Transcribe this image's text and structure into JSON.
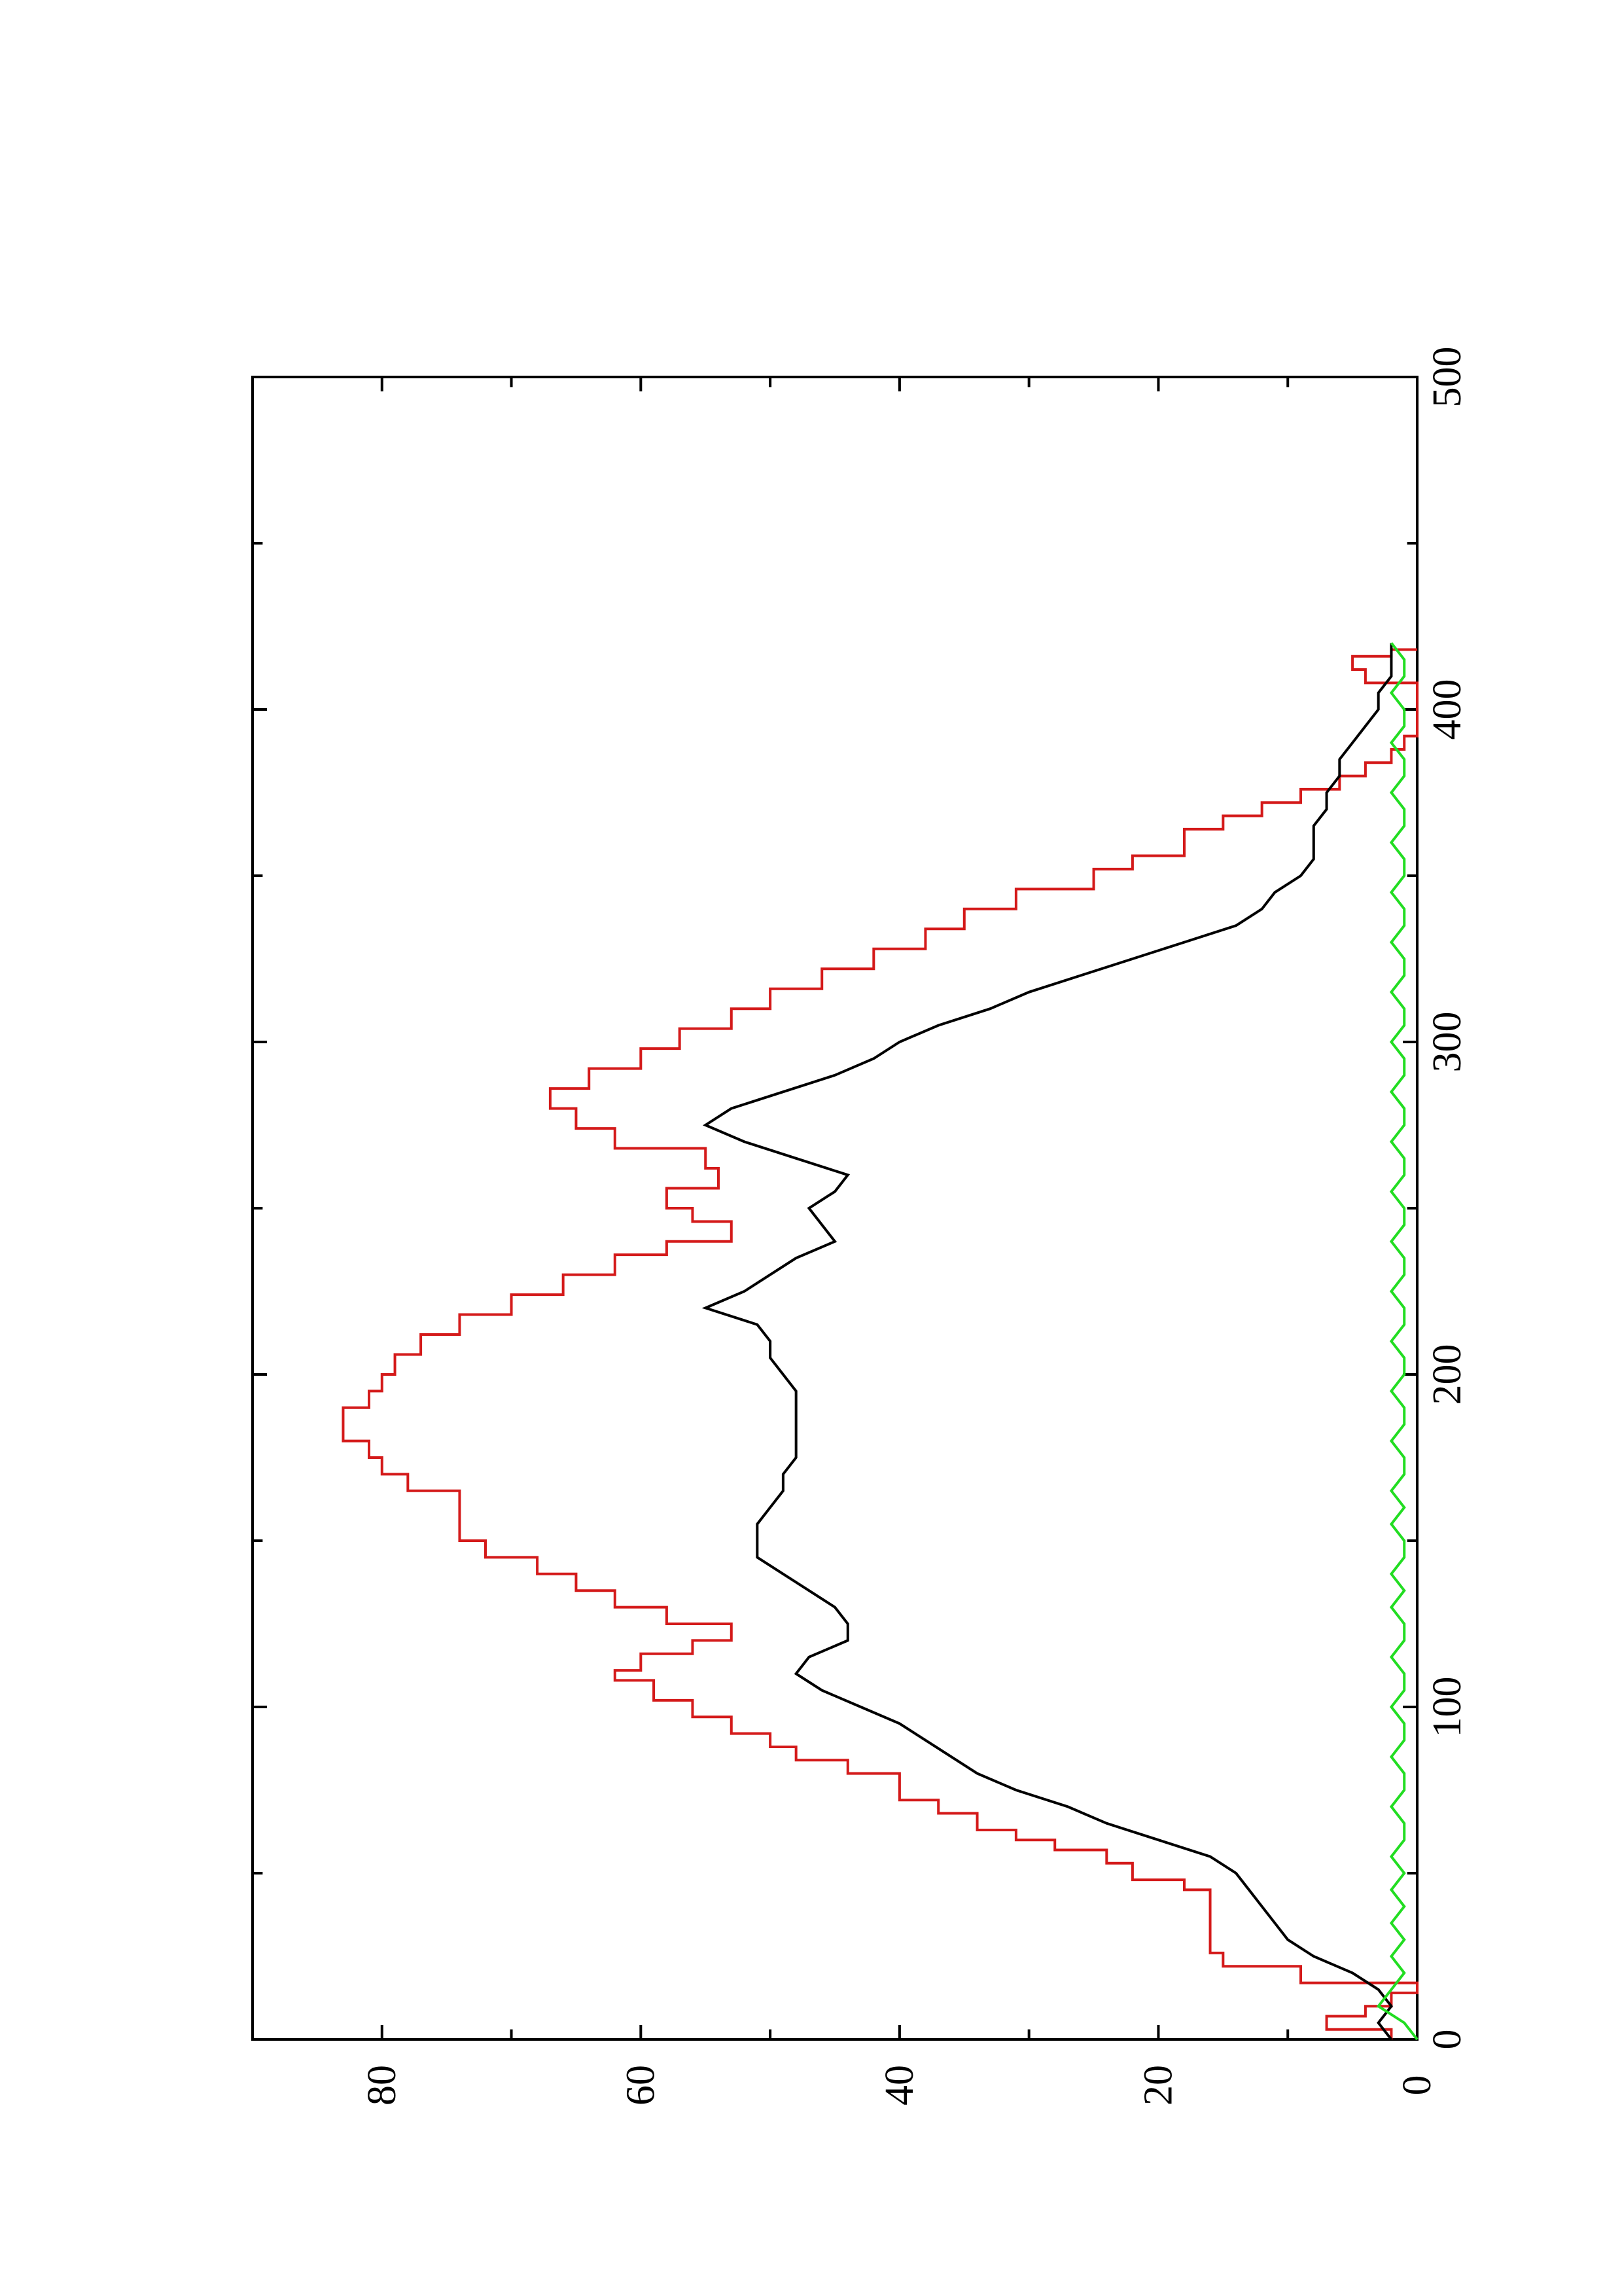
{
  "chart_data": {
    "type": "line",
    "orientation": "rotated-90-ccw",
    "title": "",
    "xlabel": "",
    "ylabel": "",
    "xlim": [
      0,
      500
    ],
    "ylim": [
      0,
      90
    ],
    "x_ticks": [
      0,
      100,
      200,
      300,
      400,
      500
    ],
    "x_tick_labels": [
      "0",
      "100",
      "200",
      "300",
      "400",
      "500"
    ],
    "y_ticks": [
      0,
      20,
      40,
      60,
      80
    ],
    "y_tick_labels": [
      "0",
      "20",
      "40",
      "60",
      "80"
    ],
    "grid": false,
    "legend": "none",
    "series": [
      {
        "color": "#d41a1a",
        "style": "stepped",
        "x": [
          0,
          3,
          7,
          10,
          14,
          17,
          22,
          26,
          30,
          45,
          48,
          53,
          57,
          60,
          63,
          68,
          72,
          80,
          84,
          88,
          92,
          97,
          102,
          108,
          111,
          116,
          120,
          125,
          130,
          135,
          140,
          145,
          150,
          155,
          160,
          165,
          170,
          175,
          180,
          185,
          190,
          195,
          200,
          206,
          212,
          218,
          224,
          230,
          236,
          240,
          246,
          250,
          256,
          262,
          268,
          274,
          280,
          286,
          292,
          298,
          304,
          310,
          316,
          322,
          328,
          334,
          340,
          346,
          352,
          356,
          364,
          368,
          372,
          376,
          380,
          384,
          388,
          392,
          398,
          404,
          408,
          412,
          416,
          418
        ],
        "y": [
          2,
          7,
          4,
          2,
          0,
          9,
          15,
          16,
          16,
          18,
          22,
          24,
          28,
          31,
          34,
          37,
          40,
          44,
          48,
          50,
          53,
          56,
          59,
          62,
          60,
          56,
          53,
          58,
          62,
          65,
          68,
          72,
          74,
          74,
          74,
          78,
          80,
          81,
          83,
          83,
          81,
          80,
          79,
          77,
          74,
          70,
          66,
          62,
          58,
          53,
          56,
          58,
          54,
          55,
          62,
          65,
          67,
          64,
          60,
          57,
          53,
          50,
          46,
          42,
          38,
          35,
          31,
          25,
          22,
          18,
          15,
          12,
          9,
          6,
          4,
          2,
          1,
          0,
          0,
          0,
          4,
          5,
          2,
          0
        ]
      },
      {
        "color": "#000000",
        "style": "line",
        "x": [
          0,
          5,
          10,
          15,
          20,
          25,
          30,
          35,
          40,
          45,
          50,
          55,
          60,
          65,
          70,
          75,
          80,
          85,
          90,
          95,
          100,
          105,
          110,
          115,
          120,
          125,
          130,
          135,
          140,
          145,
          150,
          155,
          160,
          165,
          170,
          175,
          180,
          185,
          190,
          195,
          200,
          205,
          210,
          215,
          220,
          225,
          230,
          235,
          240,
          245,
          250,
          255,
          260,
          265,
          270,
          275,
          280,
          285,
          290,
          295,
          300,
          305,
          310,
          315,
          320,
          325,
          330,
          335,
          340,
          345,
          350,
          355,
          360,
          365,
          370,
          375,
          380,
          385,
          390,
          395,
          400,
          405,
          410,
          415,
          420
        ],
        "y": [
          2,
          3,
          2,
          3,
          5,
          8,
          10,
          11,
          12,
          13,
          14,
          16,
          20,
          24,
          27,
          31,
          34,
          36,
          38,
          40,
          43,
          46,
          48,
          47,
          44,
          44,
          45,
          47,
          49,
          51,
          51,
          51,
          50,
          49,
          49,
          48,
          48,
          48,
          48,
          48,
          49,
          50,
          50,
          51,
          55,
          52,
          50,
          48,
          45,
          46,
          47,
          45,
          44,
          48,
          52,
          55,
          53,
          49,
          45,
          42,
          40,
          37,
          33,
          30,
          26,
          22,
          18,
          14,
          12,
          11,
          9,
          8,
          8,
          8,
          7,
          7,
          6,
          6,
          5,
          4,
          3,
          3,
          2,
          2,
          2
        ]
      },
      {
        "color": "#22dd22",
        "style": "noisy",
        "x": [
          0,
          5,
          10,
          15,
          20,
          25,
          30,
          35,
          40,
          45,
          50,
          55,
          60,
          65,
          70,
          75,
          80,
          85,
          90,
          95,
          100,
          105,
          110,
          115,
          120,
          125,
          130,
          135,
          140,
          145,
          150,
          155,
          160,
          165,
          170,
          175,
          180,
          185,
          190,
          195,
          200,
          205,
          210,
          215,
          220,
          225,
          230,
          235,
          240,
          245,
          250,
          255,
          260,
          265,
          270,
          275,
          280,
          285,
          290,
          295,
          300,
          305,
          310,
          315,
          320,
          325,
          330,
          335,
          340,
          345,
          350,
          355,
          360,
          365,
          370,
          375,
          380,
          385,
          390,
          395,
          400,
          405,
          410,
          415,
          420
        ],
        "y": [
          0,
          1,
          3,
          2,
          1,
          2,
          1,
          2,
          1,
          2,
          1,
          2,
          1,
          1,
          2,
          1,
          1,
          2,
          1,
          1,
          2,
          1,
          1,
          2,
          1,
          1,
          2,
          1,
          2,
          1,
          1,
          2,
          1,
          2,
          1,
          1,
          2,
          1,
          1,
          2,
          1,
          1,
          2,
          1,
          1,
          2,
          1,
          1,
          2,
          1,
          1,
          2,
          1,
          1,
          2,
          1,
          1,
          2,
          1,
          1,
          2,
          1,
          1,
          2,
          1,
          1,
          2,
          1,
          1,
          2,
          1,
          1,
          2,
          1,
          1,
          2,
          1,
          1,
          2,
          1,
          1,
          2,
          1,
          1,
          2
        ]
      }
    ]
  }
}
